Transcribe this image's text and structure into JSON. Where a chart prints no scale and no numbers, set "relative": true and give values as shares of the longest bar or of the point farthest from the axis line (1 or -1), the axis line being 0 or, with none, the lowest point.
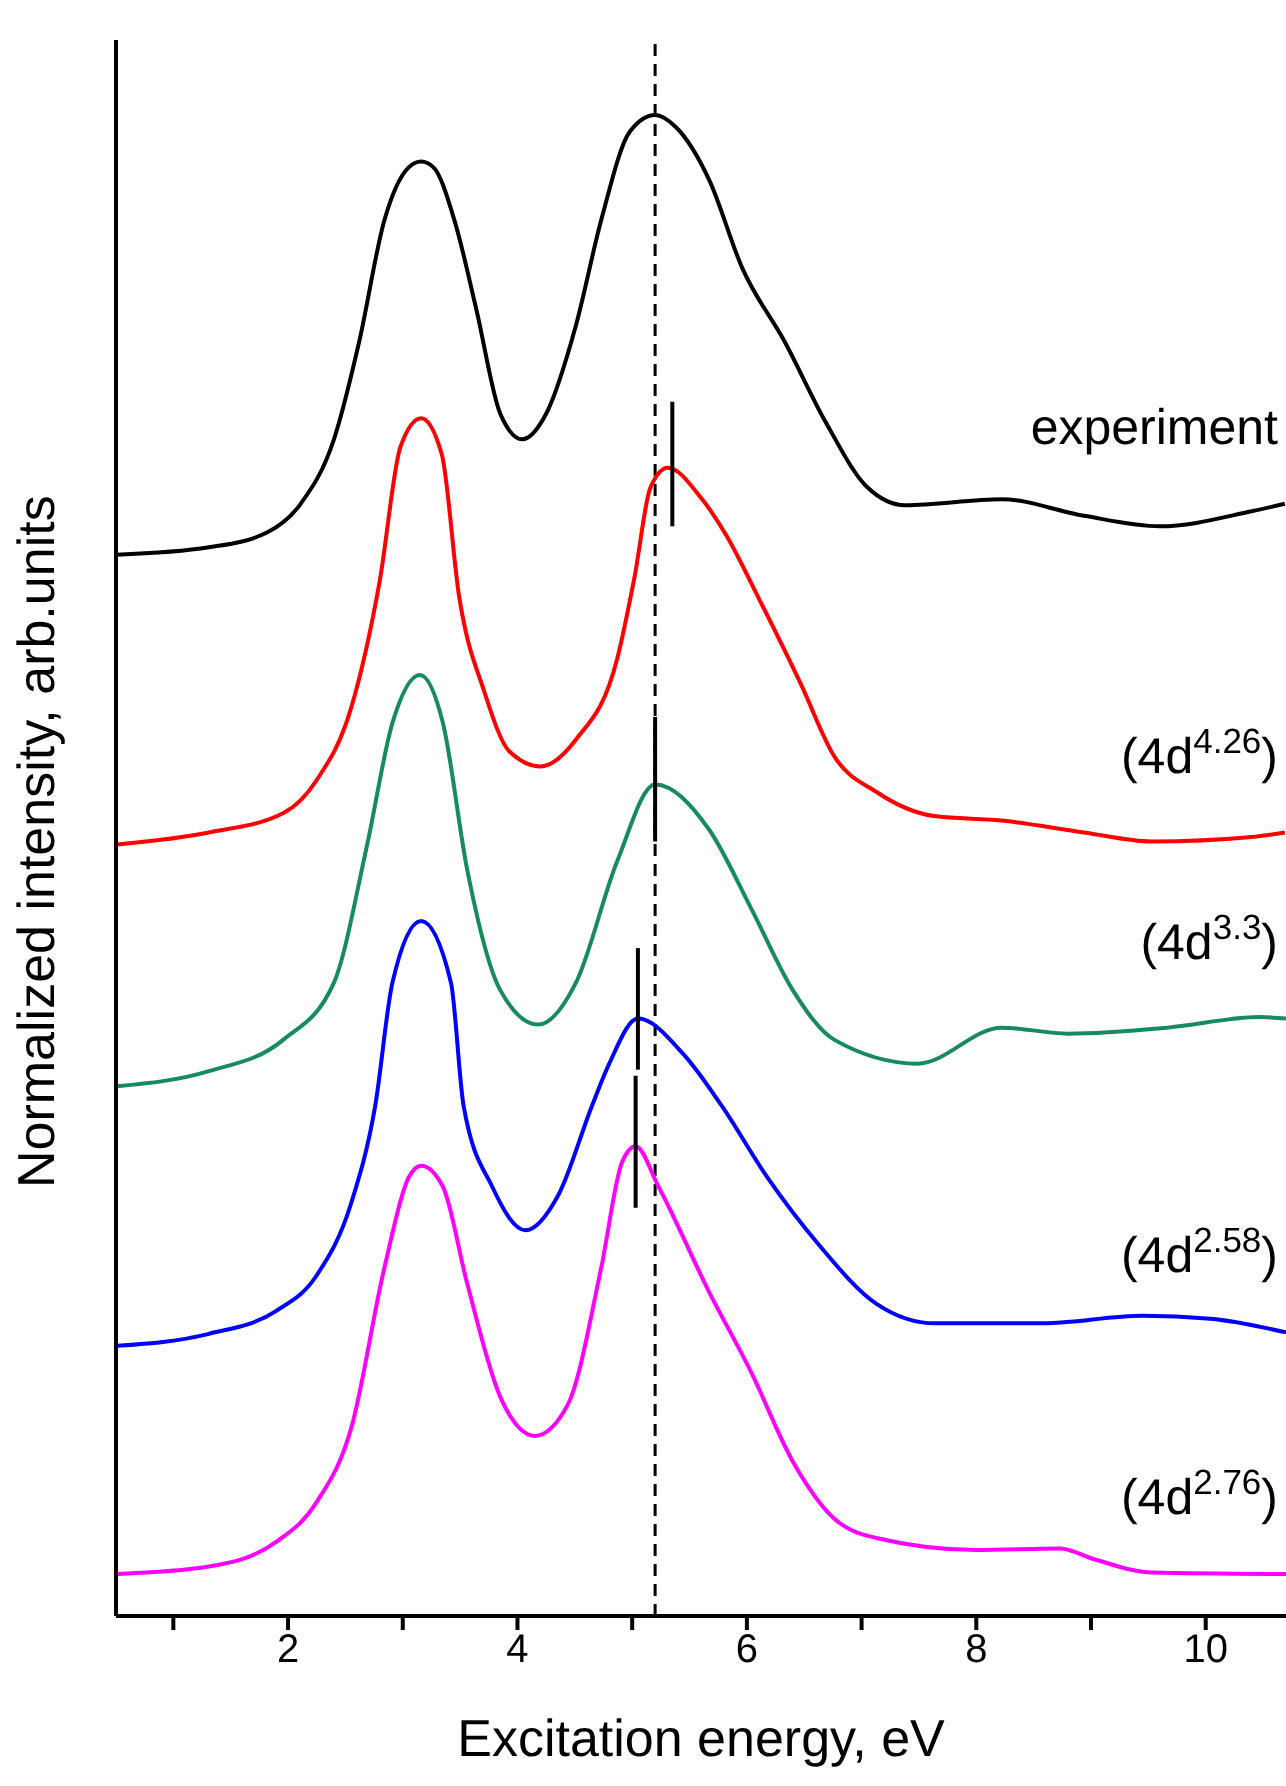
{
  "chart_data": {
    "type": "line",
    "relative": true,
    "xlabel": "Excitation energy, eV",
    "ylabel": "Normalized intensity, arb.units",
    "xlim": [
      0.5,
      10.7
    ],
    "xticks": [
      {
        "value": 1,
        "label": null
      },
      2,
      {
        "value": 3,
        "label": null
      },
      4,
      {
        "value": 5,
        "label": null
      },
      6,
      {
        "value": 7,
        "label": null
      },
      8,
      {
        "value": 9,
        "label": null
      },
      10
    ],
    "marker": "none",
    "line_style": "solid",
    "ref_lines": [
      {
        "axis": "x",
        "value": 5.2,
        "label": null,
        "color": "#000000",
        "line_style": "dashed"
      }
    ],
    "series": [
      {
        "name": "experiment",
        "color": "#000000",
        "x": [
          0.5,
          1.31,
          1.82,
          2.11,
          2.4,
          2.62,
          2.84,
          3.05,
          3.16,
          3.27,
          3.45,
          3.64,
          3.85,
          4.04,
          4.25,
          4.51,
          4.73,
          4.98,
          5.2,
          5.38,
          5.67,
          5.96,
          6.33,
          6.69,
          7.05,
          7.38,
          8.22,
          8.94,
          9.6,
          10.4,
          10.69
        ],
        "values": [
          0.707,
          0.712,
          0.722,
          0.741,
          0.784,
          0.849,
          0.93,
          0.965,
          0.969,
          0.965,
          0.93,
          0.871,
          0.801,
          0.784,
          0.801,
          0.86,
          0.93,
          0.989,
          1,
          0.992,
          0.957,
          0.898,
          0.849,
          0.795,
          0.752,
          0.74,
          0.744,
          0.733,
          0.726,
          0.736,
          0.741
        ]
      },
      {
        "name": "(4d$^{4.26}$)",
        "color": "#ff0000",
        "x": [
          0.51,
          1.31,
          1.96,
          2.25,
          2.55,
          2.8,
          2.98,
          3.16,
          3.34,
          3.49,
          3.71,
          3.93,
          4.2,
          4.51,
          4.87,
          5.02,
          5.16,
          5.31,
          5.6,
          5.82,
          6.11,
          6.47,
          6.76,
          7.13,
          7.63,
          8.22,
          8.94,
          9.53,
          10.4,
          10.69
        ],
        "values": [
          0.514,
          0.522,
          0.535,
          0.557,
          0.605,
          0.69,
          0.779,
          0.798,
          0.774,
          0.68,
          0.616,
          0.576,
          0.566,
          0.584,
          0.638,
          0.692,
          0.752,
          0.765,
          0.745,
          0.72,
          0.677,
          0.621,
          0.573,
          0.549,
          0.533,
          0.53,
          0.522,
          0.516,
          0.519,
          0.522
        ]
      },
      {
        "name": "(4d$^{3.3}$)",
        "color": "#178a5e",
        "x": [
          0.51,
          1.31,
          1.96,
          2.4,
          2.69,
          2.91,
          3.15,
          3.35,
          3.56,
          3.85,
          4.18,
          4.51,
          4.87,
          5.2,
          5.67,
          6.04,
          6.4,
          6.76,
          7.49,
          8.22,
          8.8,
          9.67,
          10.47,
          10.7
        ],
        "values": [
          0.353,
          0.363,
          0.384,
          0.422,
          0.514,
          0.595,
          0.627,
          0.595,
          0.498,
          0.417,
          0.394,
          0.422,
          0.503,
          0.554,
          0.524,
          0.471,
          0.417,
          0.384,
          0.368,
          0.392,
          0.388,
          0.392,
          0.399,
          0.398
        ]
      },
      {
        "name": "(4d$^{2.58}$)",
        "color": "#0000ff",
        "x": [
          0.51,
          1.31,
          1.89,
          2.25,
          2.55,
          2.76,
          2.91,
          3.16,
          3.42,
          3.53,
          3.78,
          4.07,
          4.36,
          4.65,
          4.8,
          5.05,
          5.45,
          5.78,
          6.18,
          6.62,
          7.13,
          7.64,
          8.58,
          9.45,
          10.04,
          10.7
        ],
        "values": [
          0.18,
          0.188,
          0.203,
          0.227,
          0.275,
          0.34,
          0.422,
          0.463,
          0.422,
          0.34,
          0.286,
          0.257,
          0.281,
          0.34,
          0.368,
          0.398,
          0.374,
          0.34,
          0.292,
          0.248,
          0.208,
          0.195,
          0.195,
          0.2,
          0.198,
          0.189
        ]
      },
      {
        "name": "(4d$^{2.76}$)",
        "color": "#ff00ff",
        "x": [
          0.51,
          1.31,
          1.89,
          2.25,
          2.55,
          2.84,
          3.05,
          3.16,
          3.35,
          3.56,
          3.85,
          4.15,
          4.44,
          4.73,
          4.91,
          5.03,
          5.23,
          5.67,
          6.04,
          6.4,
          6.76,
          7.13,
          8.0,
          8.73,
          9.02,
          9.53,
          10.7
        ],
        "values": [
          0.028,
          0.033,
          0.049,
          0.076,
          0.125,
          0.232,
          0.292,
          0.3,
          0.286,
          0.222,
          0.146,
          0.12,
          0.141,
          0.232,
          0.302,
          0.313,
          0.286,
          0.216,
          0.162,
          0.103,
          0.065,
          0.052,
          0.044,
          0.045,
          0.038,
          0.029,
          0.028
        ]
      },
      {
        "color": "#000000",
        "x": [
          5.35,
          5.35
        ],
        "values": [
          0.726,
          0.809
        ]
      },
      {
        "color": "#000000",
        "x": [
          5.2,
          5.2
        ],
        "values": [
          0.516,
          0.599
        ]
      },
      {
        "color": "#000000",
        "x": [
          5.05,
          5.05
        ],
        "values": [
          0.364,
          0.445
        ]
      },
      {
        "color": "#000000",
        "x": [
          5.03,
          5.03
        ],
        "values": [
          0.272,
          0.36
        ]
      }
    ]
  }
}
